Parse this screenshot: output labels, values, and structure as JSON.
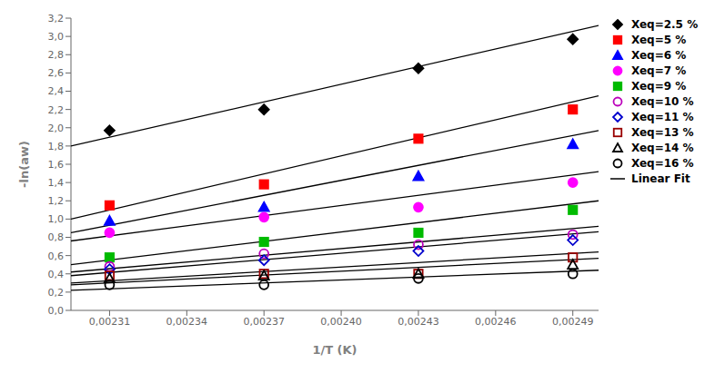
{
  "chart_data": {
    "type": "scatter",
    "xlabel": "1/T (K)",
    "ylabel": "-ln(aw)",
    "xlim": [
      0.002295,
      0.0025
    ],
    "ylim": [
      0.0,
      3.2
    ],
    "xticks": [
      {
        "value": 0.00231,
        "label": "0,00231"
      },
      {
        "value": 0.00234,
        "label": "0,00234"
      },
      {
        "value": 0.00237,
        "label": "0,00237"
      },
      {
        "value": 0.0024,
        "label": "0,00240"
      },
      {
        "value": 0.00243,
        "label": "0,00243"
      },
      {
        "value": 0.00246,
        "label": "0,00246"
      },
      {
        "value": 0.00249,
        "label": "0,00249"
      }
    ],
    "yticks": [
      {
        "value": 0.0,
        "label": "0,0"
      },
      {
        "value": 0.2,
        "label": "0,2"
      },
      {
        "value": 0.4,
        "label": "0,4"
      },
      {
        "value": 0.6,
        "label": "0,6"
      },
      {
        "value": 0.8,
        "label": "0,8"
      },
      {
        "value": 1.0,
        "label": "1,0"
      },
      {
        "value": 1.2,
        "label": "1,2"
      },
      {
        "value": 1.4,
        "label": "1,4"
      },
      {
        "value": 1.6,
        "label": "1,6"
      },
      {
        "value": 1.8,
        "label": "1,8"
      },
      {
        "value": 2.0,
        "label": "2,0"
      },
      {
        "value": 2.2,
        "label": "2,2"
      },
      {
        "value": 2.4,
        "label": "2,4"
      },
      {
        "value": 2.6,
        "label": "2,6"
      },
      {
        "value": 2.8,
        "label": "2,8"
      },
      {
        "value": 3.0,
        "label": "3,0"
      },
      {
        "value": 3.2,
        "label": "3,2"
      }
    ],
    "legend": "right",
    "x": [
      0.00231,
      0.00237,
      0.00243,
      0.00249
    ],
    "series": [
      {
        "name": "Xeq=2.5 %",
        "color": "#000000",
        "marker": "diamond",
        "values": [
          1.97,
          2.2,
          2.65,
          2.97
        ]
      },
      {
        "name": "Xeq=5 %",
        "color": "#ff0000",
        "marker": "square",
        "values": [
          1.15,
          1.38,
          1.88,
          2.2
        ]
      },
      {
        "name": "Xeq=6 %",
        "color": "#0000ff",
        "marker": "triangle",
        "values": [
          0.98,
          1.13,
          1.47,
          1.82
        ]
      },
      {
        "name": "Xeq=7 %",
        "color": "#ff00ff",
        "marker": "circle",
        "values": [
          0.85,
          1.02,
          1.13,
          1.4
        ]
      },
      {
        "name": "Xeq=9 %",
        "color": "#00bb00",
        "marker": "square",
        "values": [
          0.58,
          0.75,
          0.85,
          1.1
        ]
      },
      {
        "name": "Xeq=10 %",
        "color": "#bb00bb",
        "marker": "circle-open",
        "values": [
          0.48,
          0.62,
          0.72,
          0.83
        ]
      },
      {
        "name": "Xeq=11 %",
        "color": "#0000cc",
        "marker": "diamond-open",
        "values": [
          0.45,
          0.55,
          0.65,
          0.77
        ]
      },
      {
        "name": "Xeq=13 %",
        "color": "#990000",
        "marker": "square-open",
        "values": [
          0.38,
          0.4,
          0.4,
          0.58
        ]
      },
      {
        "name": "Xeq=14 %",
        "color": "#000000",
        "marker": "triangle-open",
        "values": [
          0.35,
          0.38,
          0.4,
          0.5
        ]
      },
      {
        "name": "Xeq=16 %",
        "color": "#000000",
        "marker": "circle-open",
        "values": [
          0.28,
          0.28,
          0.35,
          0.4
        ]
      },
      {
        "name": "Linear Fit",
        "type": "line",
        "color": "#000000",
        "line_style": "solid",
        "lines": [
          {
            "x": [
              0.002295,
              0.0025
            ],
            "values": [
              1.8,
              3.12
            ]
          },
          {
            "x": [
              0.002295,
              0.0025
            ],
            "values": [
              1.0,
              2.35
            ]
          },
          {
            "x": [
              0.002295,
              0.0025
            ],
            "values": [
              0.85,
              1.97
            ]
          },
          {
            "x": [
              0.002295,
              0.0025
            ],
            "values": [
              0.76,
              1.52
            ]
          },
          {
            "x": [
              0.002295,
              0.0025
            ],
            "values": [
              0.5,
              1.2
            ]
          },
          {
            "x": [
              0.002295,
              0.0025
            ],
            "values": [
              0.42,
              0.92
            ]
          },
          {
            "x": [
              0.002295,
              0.0025
            ],
            "values": [
              0.38,
              0.86
            ]
          },
          {
            "x": [
              0.002295,
              0.0025
            ],
            "values": [
              0.3,
              0.64
            ]
          },
          {
            "x": [
              0.002295,
              0.0025
            ],
            "values": [
              0.28,
              0.57
            ]
          },
          {
            "x": [
              0.002295,
              0.0025
            ],
            "values": [
              0.22,
              0.44
            ]
          }
        ]
      }
    ]
  }
}
